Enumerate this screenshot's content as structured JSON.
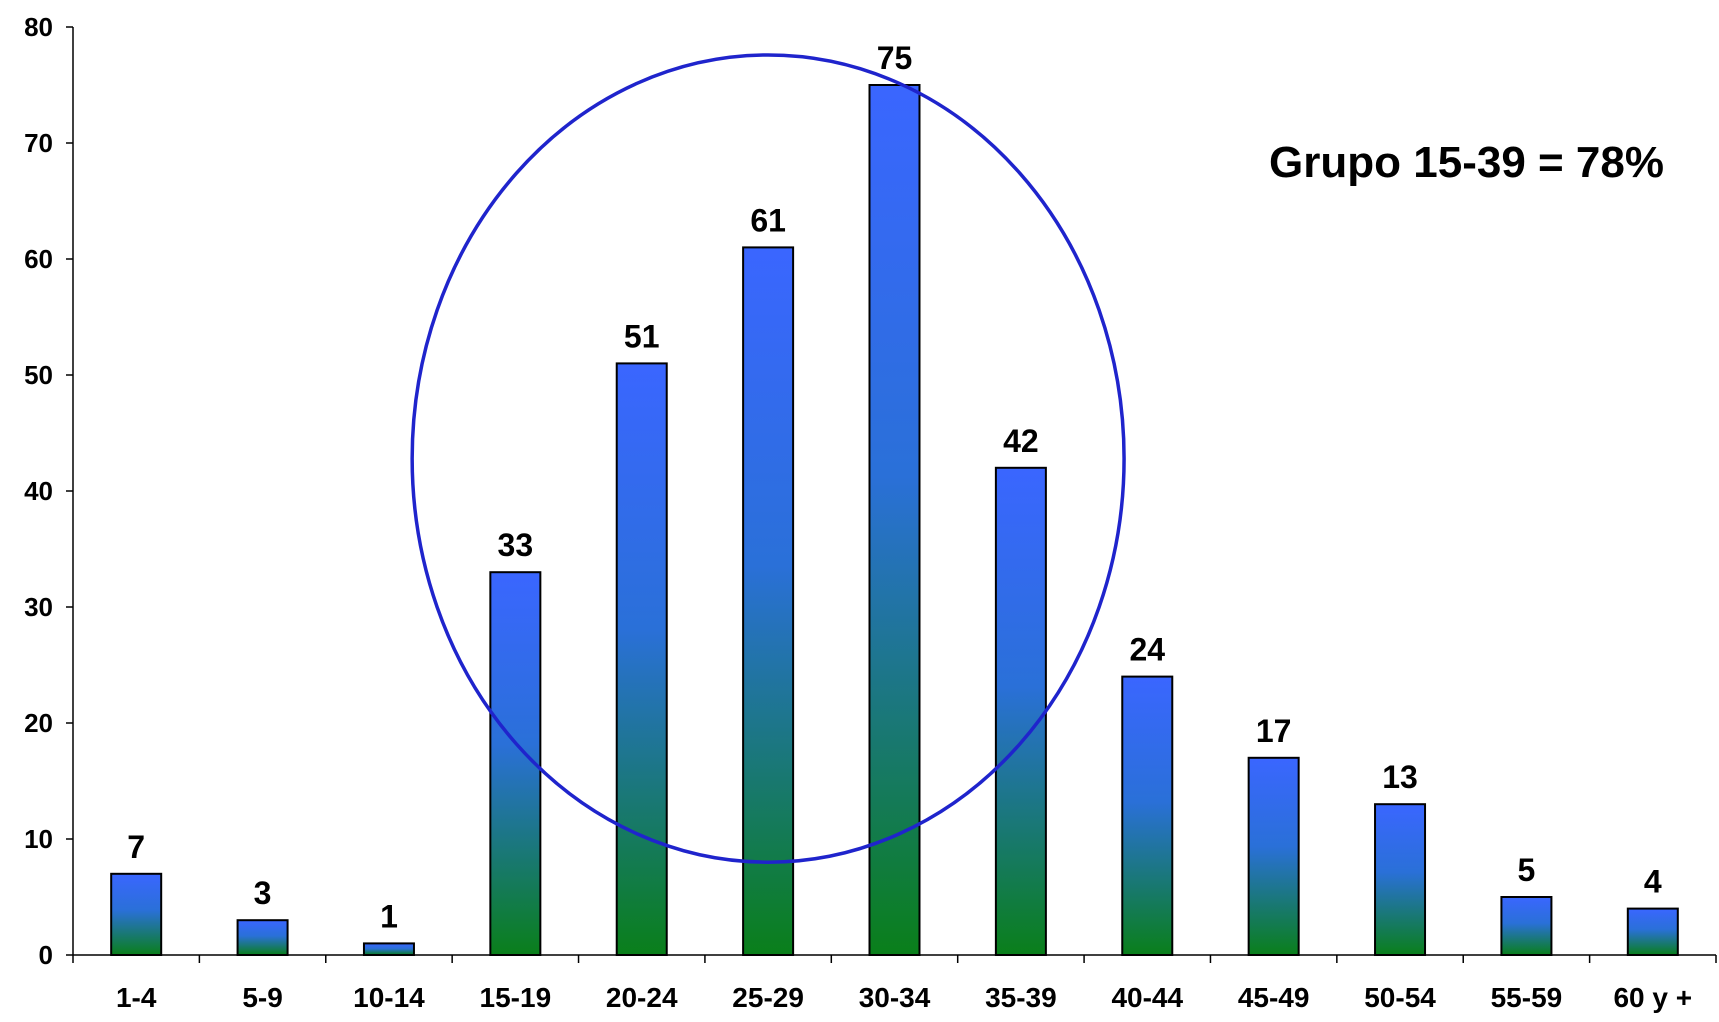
{
  "chart_data": {
    "type": "bar",
    "categories": [
      "1-4",
      "5-9",
      "10-14",
      "15-19",
      "20-24",
      "25-29",
      "30-34",
      "35-39",
      "40-44",
      "45-49",
      "50-54",
      "55-59",
      "60 y +"
    ],
    "values": [
      7,
      3,
      1,
      33,
      51,
      61,
      75,
      42,
      24,
      17,
      13,
      5,
      4
    ],
    "ylim": [
      0,
      80
    ],
    "yticks": [
      0,
      10,
      20,
      30,
      40,
      50,
      60,
      70,
      80
    ],
    "title": "",
    "xlabel": "",
    "ylabel": "",
    "grid": false,
    "data_labels": true,
    "annotation": "Grupo 15-39 = 78%",
    "highlight": {
      "shape": "circle",
      "categories": [
        "15-19",
        "20-24",
        "25-29",
        "30-34",
        "35-39"
      ]
    },
    "colors": {
      "bar_top": "#3a66ff",
      "bar_bottom": "#0a7f1a",
      "bar_stroke": "#000000",
      "highlight_stroke": "#1f24cc",
      "axis": "#000000"
    }
  }
}
